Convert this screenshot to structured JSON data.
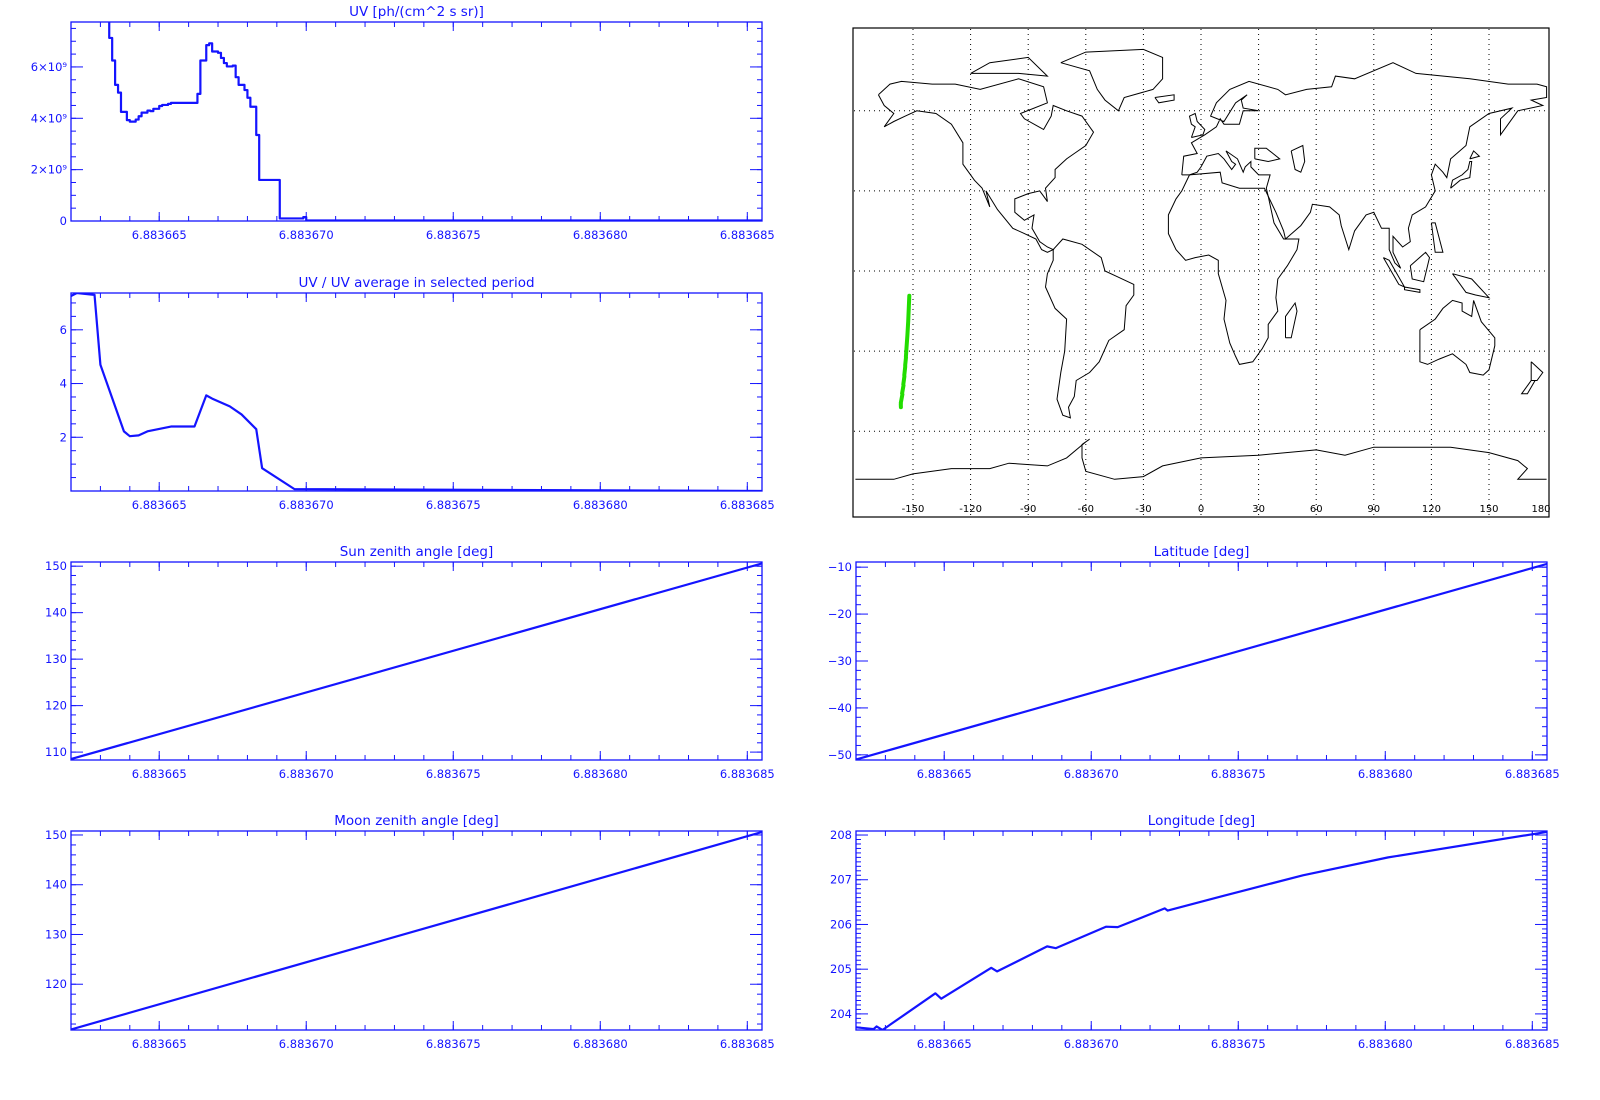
{
  "chart_data": [
    {
      "id": "uv",
      "type": "line",
      "step": true,
      "title": "UV [ph/(cm^2 s sr)]",
      "xlim": [
        6.883662,
        6.8836855
      ],
      "ylim": [
        0,
        7750000000
      ],
      "xticks": [
        6.883665,
        6.88367,
        6.883675,
        6.88368,
        6.883685
      ],
      "xtick_labels": [
        "6.883665",
        "6.883670",
        "6.883675",
        "6.883680",
        "6.883685"
      ],
      "yticks": [
        0,
        2000000000,
        4000000000,
        6000000000
      ],
      "ytick_labels": [
        "0",
        "2×10⁹",
        "4×10⁹",
        "6×10⁹"
      ],
      "bin_edges": [
        6.8836633,
        6.8836634,
        6.8836635,
        6.8836636,
        6.8836637,
        6.8836639,
        6.883664,
        6.8836642,
        6.8836643,
        6.8836644,
        6.8836646,
        6.8836647,
        6.8836648,
        6.883665,
        6.8836651,
        6.8836653,
        6.8836654,
        6.8836659,
        6.8836663,
        6.8836664,
        6.8836666,
        6.8836667,
        6.8836668,
        6.883667,
        6.8836671,
        6.8836672,
        6.8836673,
        6.8836675,
        6.8836676,
        6.8836677,
        6.8836679,
        6.883668,
        6.8836681,
        6.8836683,
        6.8836684,
        6.8836691,
        6.8836699,
        6.88367,
        6.8836855
      ],
      "values": [
        7130000000,
        6250000000,
        5300000000,
        5000000000,
        4250000000,
        3930000000,
        3870000000,
        3950000000,
        4080000000,
        4220000000,
        4300000000,
        4280000000,
        4370000000,
        4480000000,
        4520000000,
        4560000000,
        4600000000,
        4600000000,
        4950000000,
        6250000000,
        6850000000,
        6920000000,
        6600000000,
        6550000000,
        6350000000,
        6150000000,
        6020000000,
        6050000000,
        5600000000,
        5300000000,
        5100000000,
        4800000000,
        4450000000,
        3350000000,
        1600000000,
        100000000,
        150000000,
        20000000
      ]
    },
    {
      "id": "uv-ratio",
      "type": "line",
      "title": "UV / UV average in selected period",
      "xlim": [
        6.883662,
        6.8836855
      ],
      "ylim": [
        0,
        7.37
      ],
      "xticks": [
        6.883665,
        6.88367,
        6.883675,
        6.88368,
        6.883685
      ],
      "xtick_labels": [
        "6.883665",
        "6.883670",
        "6.883675",
        "6.883680",
        "6.883685"
      ],
      "yticks": [
        2,
        4,
        6
      ],
      "ytick_labels": [
        "2",
        "4",
        "6"
      ],
      "x": [
        6.883662,
        6.8836622,
        6.8836628,
        6.883663,
        6.8836638,
        6.883664,
        6.8836643,
        6.8836646,
        6.8836654,
        6.8836662,
        6.8836666,
        6.8836668,
        6.8836674,
        6.8836678,
        6.8836683,
        6.8836685,
        6.8836696,
        6.8836855
      ],
      "y": [
        7.26,
        7.37,
        7.3,
        4.7,
        2.22,
        2.04,
        2.07,
        2.22,
        2.4,
        2.4,
        3.56,
        3.44,
        3.15,
        2.85,
        2.3,
        0.85,
        0.07,
        0.0
      ]
    },
    {
      "id": "sun-zenith",
      "type": "line",
      "title": "Sun zenith angle [deg]",
      "xlim": [
        6.883662,
        6.8836855
      ],
      "ylim": [
        108.3,
        150.9
      ],
      "xticks": [
        6.883665,
        6.88367,
        6.883675,
        6.88368,
        6.883685
      ],
      "xtick_labels": [
        "6.883665",
        "6.883670",
        "6.883675",
        "6.883680",
        "6.883685"
      ],
      "yticks": [
        110,
        120,
        130,
        140,
        150
      ],
      "ytick_labels": [
        "110",
        "120",
        "130",
        "140",
        "150"
      ],
      "x": [
        6.883662,
        6.8836855
      ],
      "y": [
        108.5,
        150.6
      ]
    },
    {
      "id": "latitude",
      "type": "line",
      "title": "Latitude [deg]",
      "xlim": [
        6.883662,
        6.8836855
      ],
      "ylim": [
        -51.1,
        -8.9
      ],
      "xticks": [
        6.883665,
        6.88367,
        6.883675,
        6.88368,
        6.883685
      ],
      "xtick_labels": [
        "6.883665",
        "6.883670",
        "6.883675",
        "6.883680",
        "6.883685"
      ],
      "yticks": [
        -50,
        -40,
        -30,
        -20,
        -10
      ],
      "ytick_labels": [
        "−50",
        "−40",
        "−30",
        "−20",
        "−10"
      ],
      "x": [
        6.883662,
        6.8836855
      ],
      "y": [
        -51.0,
        -9.3
      ]
    },
    {
      "id": "moon-zenith",
      "type": "line",
      "title": "Moon zenith angle [deg]",
      "xlim": [
        6.883662,
        6.8836855
      ],
      "ylim": [
        110.8,
        150.8
      ],
      "xticks": [
        6.883665,
        6.88367,
        6.883675,
        6.88368,
        6.883685
      ],
      "xtick_labels": [
        "6.883665",
        "6.883670",
        "6.883675",
        "6.883680",
        "6.883685"
      ],
      "yticks": [
        120,
        130,
        140,
        150
      ],
      "ytick_labels": [
        "120",
        "130",
        "140",
        "150"
      ],
      "x": [
        6.883662,
        6.8836855
      ],
      "y": [
        110.9,
        150.6
      ]
    },
    {
      "id": "longitude",
      "type": "line",
      "title": "Longitude [deg]",
      "xlim": [
        6.883662,
        6.8836855
      ],
      "ylim": [
        203.64,
        208.09
      ],
      "xticks": [
        6.883665,
        6.88367,
        6.883675,
        6.88368,
        6.883685
      ],
      "xtick_labels": [
        "6.883665",
        "6.883670",
        "6.883675",
        "6.883680",
        "6.883685"
      ],
      "yticks": [
        204,
        205,
        206,
        207,
        208
      ],
      "ytick_labels": [
        "204",
        "205",
        "206",
        "207",
        "208"
      ],
      "x": [
        6.883662,
        6.8836626,
        6.8836627,
        6.8836629,
        6.8836647,
        6.8836649,
        6.8836666,
        6.8836668,
        6.8836685,
        6.8836688,
        6.8836705,
        6.8836709,
        6.8836725,
        6.8836726,
        6.8836745,
        6.8836772,
        6.8836801,
        6.8836855
      ],
      "y": [
        203.7,
        203.66,
        203.72,
        203.64,
        204.46,
        204.34,
        205.03,
        204.95,
        205.51,
        205.47,
        205.95,
        205.94,
        206.36,
        206.31,
        206.64,
        207.1,
        207.5,
        208.07
      ]
    }
  ],
  "map": {
    "type": "map",
    "lon_ticks": [
      -150,
      -120,
      -90,
      -60,
      -30,
      0,
      30,
      60,
      90,
      120,
      150,
      180
    ],
    "lon_tick_labels": [
      "-150",
      "-120",
      "-90",
      "-60",
      "-30",
      "0",
      "30",
      "60",
      "90",
      "120",
      "150",
      "180"
    ],
    "lat_grid": [
      -60,
      -30,
      0,
      30,
      60
    ],
    "track_color": "#22dd00",
    "track_source": "latitude/longitude series"
  },
  "colors": {
    "plot": "#1414ff",
    "coast": "#000000",
    "track": "#22dd00"
  }
}
